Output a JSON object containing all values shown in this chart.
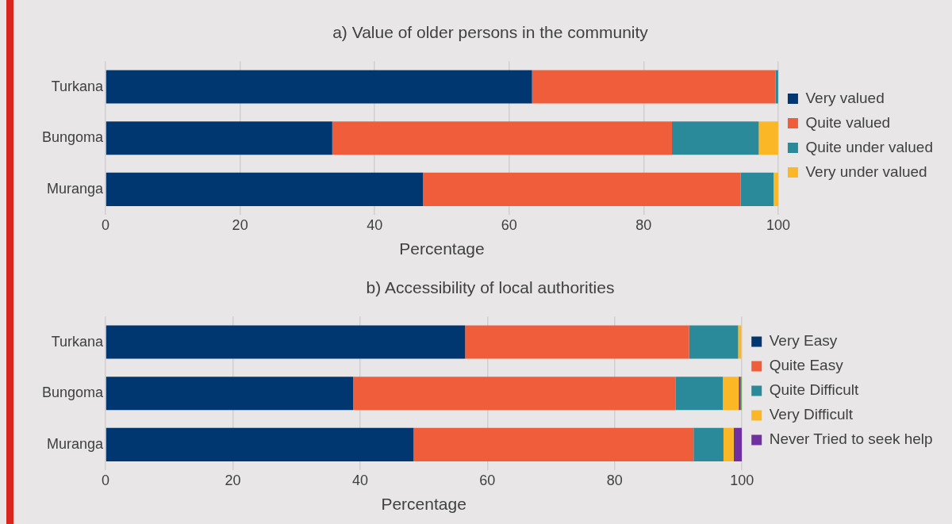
{
  "chart_data": [
    {
      "type": "bar",
      "orientation": "horizontal",
      "stacked": true,
      "title": "a) Value of older persons in the community",
      "xlabel": "Percentage",
      "categories": [
        "Turkana",
        "Bungoma",
        "Muranga"
      ],
      "xlim": [
        0,
        100
      ],
      "xticks": [
        0,
        20,
        40,
        60,
        80,
        100
      ],
      "grid": "x",
      "legend": "right",
      "series": [
        {
          "name": "Very valued",
          "color": "#003770",
          "values": [
            63.4,
            33.7,
            47.2
          ]
        },
        {
          "name": "Quite valued",
          "color": "#f05d3b",
          "values": [
            36.2,
            50.5,
            47.2
          ]
        },
        {
          "name": "Quite under valued",
          "color": "#2a8a9a",
          "values": [
            0.4,
            12.9,
            4.9
          ]
        },
        {
          "name": "Very under valued",
          "color": "#fbb725",
          "values": [
            0,
            2.9,
            0.7
          ]
        }
      ]
    },
    {
      "type": "bar",
      "orientation": "horizontal",
      "stacked": true,
      "title": "b) Accessibility of local authorities",
      "xlabel": "Percentage",
      "categories": [
        "Turkana",
        "Bungoma",
        "Muranga"
      ],
      "xlim": [
        0,
        100
      ],
      "xticks": [
        0,
        20,
        40,
        60,
        80,
        100
      ],
      "grid": "x",
      "legend": "right",
      "series": [
        {
          "name": "Very Easy",
          "color": "#003770",
          "values": [
            56.5,
            38.9,
            48.4
          ]
        },
        {
          "name": "Quite Easy",
          "color": "#f05d3b",
          "values": [
            35.2,
            50.7,
            44.0
          ]
        },
        {
          "name": "Quite Difficult",
          "color": "#2a8a9a",
          "values": [
            7.7,
            7.4,
            4.7
          ]
        },
        {
          "name": "Very Difficult",
          "color": "#fbb725",
          "values": [
            0.5,
            2.5,
            1.6
          ]
        },
        {
          "name": "Never Tried to seek help",
          "color": "#7030a0",
          "values": [
            0,
            0.3,
            1.3
          ]
        },
        {
          "color": "#70ad47",
          "values": [
            0,
            0.2,
            0
          ]
        }
      ]
    }
  ]
}
